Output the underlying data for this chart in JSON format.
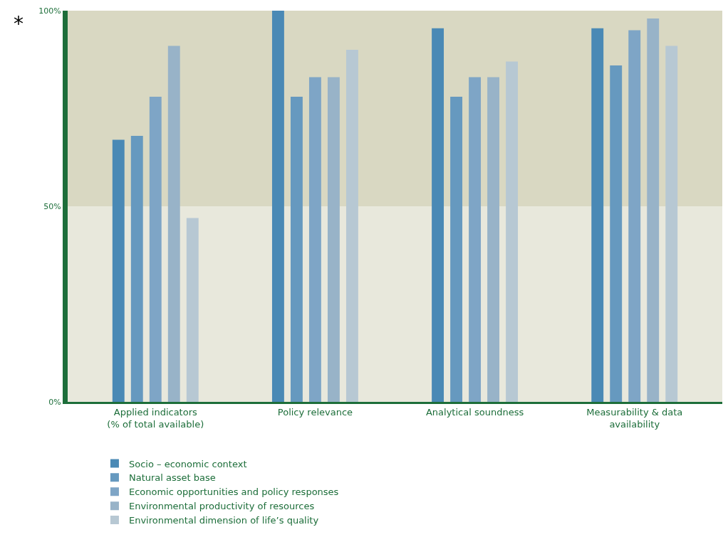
{
  "chart_data": {
    "type": "bar",
    "categories": [
      "Applied indicators\n(% of total available)",
      "Policy relevance",
      "Analytical soundness",
      "Measurability & data\navailability"
    ],
    "series": [
      {
        "name": "Socio – economic context",
        "color": "#4a89b5",
        "values": [
          67,
          100,
          95.5,
          95.5
        ]
      },
      {
        "name": "Natural asset base",
        "color": "#6699bf",
        "values": [
          68,
          78,
          78,
          86
        ]
      },
      {
        "name": "Economic opportunities and policy responses",
        "color": "#7ea5c6",
        "values": [
          78,
          83,
          83,
          95
        ]
      },
      {
        "name": "Environmental productivity of resources",
        "color": "#98b3c8",
        "values": [
          91,
          83,
          83,
          98
        ]
      },
      {
        "name": "Environmental dimension of life’s quality",
        "color": "#b7c8d3",
        "values": [
          47,
          90,
          87,
          91
        ]
      }
    ],
    "ylim": [
      0,
      100
    ],
    "yticks": [
      {
        "value": 0,
        "label": "0%"
      },
      {
        "value": 50,
        "label": "50%"
      },
      {
        "value": 100,
        "label": "100%"
      }
    ],
    "bands": [
      {
        "axis": "y",
        "from": 0,
        "to": 50,
        "color": "#e8e8dc"
      },
      {
        "axis": "y",
        "from": 50,
        "to": 100,
        "color": "#d9d8c2"
      }
    ],
    "annotations": [
      "*"
    ],
    "grid": false,
    "legend": "bottom"
  }
}
